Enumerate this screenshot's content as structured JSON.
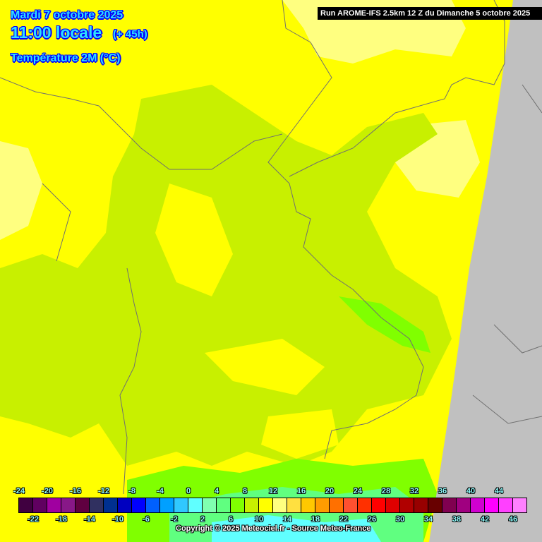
{
  "header": {
    "date": "Mardi 7 octobre 2025",
    "time": "11:00 locale",
    "lead": "(+ 45h)",
    "parameter": "Température 2M (°C)",
    "run": "Run AROME-IFS 2.5km 12 Z du Dimanche 5 octobre 2025"
  },
  "colorbar": {
    "top_labels": [
      "-24",
      "-20",
      "-16",
      "-12",
      "-8",
      "-4",
      "0",
      "4",
      "8",
      "12",
      "16",
      "20",
      "24",
      "28",
      "32",
      "36",
      "40",
      "44"
    ],
    "bottom_labels": [
      "-22",
      "-18",
      "-14",
      "-10",
      "-6",
      "-2",
      "2",
      "6",
      "10",
      "14",
      "18",
      "22",
      "26",
      "30",
      "34",
      "38",
      "42",
      "46"
    ],
    "colors": [
      "#400040",
      "#600060",
      "#a000a0",
      "#881888",
      "#600040",
      "#303060",
      "#003090",
      "#0000c0",
      "#0000ff",
      "#0060ff",
      "#00a0ff",
      "#30c8ff",
      "#60ffff",
      "#80ffb0",
      "#60ff80",
      "#80ff00",
      "#c8f000",
      "#ffff00",
      "#ffff80",
      "#ffe040",
      "#ffc800",
      "#ff9c00",
      "#ff7000",
      "#ff5030",
      "#ff3000",
      "#ff0000",
      "#e00000",
      "#b00000",
      "#980000",
      "#680000",
      "#800050",
      "#a00080",
      "#d000d0",
      "#ff00ff",
      "#ff40ff",
      "#ff80ff"
    ]
  },
  "map_colors": {
    "warm": "#ffff00",
    "mild": "#ffff80",
    "cool": "#c8f000",
    "cooler": "#80ff00",
    "cold": "#60ff80",
    "outside_domain": "#c0c0c0",
    "borders": "#707070"
  },
  "copyright": "Copyright © 2025 Meteociel.fr - Source Meteo-France"
}
